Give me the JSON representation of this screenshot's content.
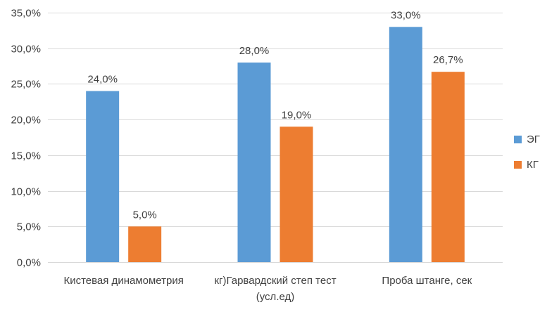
{
  "chart_data": {
    "type": "bar",
    "title": "",
    "xlabel": "",
    "ylabel": "",
    "categories": [
      [
        "Кистевая динамометрия"
      ],
      [
        "кг)Гарвардский степ тест",
        "(усл.ед)"
      ],
      [
        "Проба штанге, сек"
      ]
    ],
    "series": [
      {
        "name": "ЭГ",
        "color": "#5B9BD5",
        "values": [
          24.0,
          28.0,
          33.0
        ],
        "labels": [
          "24,0%",
          "28,0%",
          "33,0%"
        ]
      },
      {
        "name": "КГ",
        "color": "#ED7D31",
        "values": [
          5.0,
          19.0,
          26.7
        ],
        "labels": [
          "5,0%",
          "19,0%",
          "26,7%"
        ]
      }
    ],
    "ylim": [
      0,
      35
    ],
    "yticks": [
      0,
      5,
      10,
      15,
      20,
      25,
      30,
      35
    ],
    "ytick_labels": [
      "0,0%",
      "5,0%",
      "10,0%",
      "15,0%",
      "20,0%",
      "25,0%",
      "30,0%",
      "35,0%"
    ],
    "grid": true,
    "grid_color": "#D9D9D9",
    "legend_position": "right"
  }
}
